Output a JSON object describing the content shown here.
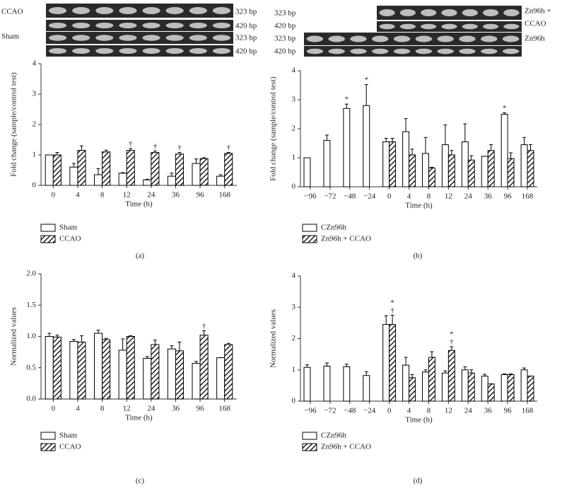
{
  "gels": {
    "a": [
      "CCAO",
      "323 bp",
      "420 bp",
      "Sham",
      "323 bp",
      "420 bp"
    ],
    "b": [
      "323 bp",
      "420 bp",
      "323 bp",
      "420 bp",
      "Zn96h +",
      "CCAO",
      "Zn96h"
    ]
  },
  "chart_data": [
    {
      "type": "bar",
      "panel_label": "(a)",
      "y_label": "Fold change (sample/control test)",
      "x_label": "Time (h)",
      "categories": [
        "0",
        "4",
        "8",
        "12",
        "24",
        "36",
        "96",
        "168"
      ],
      "ylim": [
        0,
        4
      ],
      "yticks": [
        0,
        1,
        2,
        3,
        4
      ],
      "series": [
        {
          "name": "Sham",
          "color": "#ffffff",
          "hatch": false,
          "values": [
            1.0,
            0.6,
            0.35,
            0.4,
            0.18,
            0.3,
            0.72,
            0.3
          ],
          "errors": [
            0,
            0.12,
            0.2,
            0.02,
            0.02,
            0.1,
            0.15,
            0.05
          ],
          "markers": [
            null,
            null,
            null,
            null,
            null,
            null,
            null,
            null
          ]
        },
        {
          "name": "CCAO",
          "color": "#000000",
          "hatch": true,
          "values": [
            1.0,
            1.15,
            1.1,
            1.15,
            1.08,
            1.03,
            0.88,
            1.05
          ],
          "errors": [
            0.08,
            0.15,
            0.06,
            0.06,
            0.05,
            0.05,
            0.03,
            0.03
          ],
          "markers": [
            null,
            null,
            null,
            [
              "†"
            ],
            [
              "†"
            ],
            [
              "†"
            ],
            null,
            [
              "†"
            ]
          ]
        }
      ]
    },
    {
      "type": "bar",
      "panel_label": "(b)",
      "y_label": "Fold change (sample/control test)",
      "x_label": "Time (h)",
      "categories": [
        "−96",
        "−72",
        "−48",
        "−24",
        "0",
        "4",
        "8",
        "12",
        "24",
        "36",
        "96",
        "168"
      ],
      "ylim": [
        0,
        4
      ],
      "yticks": [
        0,
        1,
        2,
        3,
        4
      ],
      "series": [
        {
          "name": "CZn96h",
          "color": "#ffffff",
          "hatch": false,
          "values": [
            1.0,
            1.6,
            2.7,
            2.8,
            1.55,
            1.9,
            1.15,
            1.45,
            1.55,
            1.05,
            2.5,
            1.45
          ],
          "errors": [
            0,
            0.18,
            0.15,
            0.72,
            0.12,
            0.45,
            0.55,
            0.68,
            0.62,
            0,
            0.05,
            0.25
          ],
          "markers": [
            null,
            null,
            [
              "*"
            ],
            [
              "*"
            ],
            null,
            null,
            null,
            null,
            null,
            null,
            [
              "*"
            ],
            null
          ]
        },
        {
          "name": "Zn96h + CCAO",
          "color": "#000000",
          "hatch": true,
          "values": [
            null,
            null,
            null,
            null,
            1.55,
            1.1,
            0.65,
            1.1,
            0.92,
            1.25,
            0.97,
            1.25
          ],
          "errors": [
            null,
            null,
            null,
            null,
            0.12,
            0.2,
            0.02,
            0.15,
            0.15,
            0.2,
            0.2,
            0.2
          ],
          "markers": [
            null,
            null,
            null,
            null,
            null,
            null,
            null,
            null,
            null,
            null,
            null,
            null
          ]
        }
      ]
    },
    {
      "type": "bar",
      "panel_label": "(c)",
      "y_label": "Normalized values",
      "x_label": "Time (h)",
      "categories": [
        "0",
        "4",
        "8",
        "12",
        "24",
        "36",
        "96",
        "168"
      ],
      "ylim": [
        0,
        2
      ],
      "yticks": [
        {
          "value": 0,
          "label": "0.0"
        },
        0.5,
        {
          "value": 1,
          "label": "1.0"
        },
        1.5,
        {
          "value": 2,
          "label": "2.0"
        }
      ],
      "series": [
        {
          "name": "Sham",
          "color": "#ffffff",
          "hatch": false,
          "values": [
            1.0,
            0.92,
            1.05,
            0.78,
            0.65,
            0.8,
            0.57,
            0.66
          ],
          "errors": [
            0.05,
            0.03,
            0.05,
            0.18,
            0.03,
            0.05,
            0.03,
            0
          ],
          "markers": [
            null,
            null,
            null,
            null,
            null,
            null,
            null,
            null
          ]
        },
        {
          "name": "CCAO",
          "color": "#000000",
          "hatch": true,
          "values": [
            0.99,
            0.91,
            0.95,
            1.0,
            0.87,
            0.77,
            1.02,
            0.87
          ],
          "errors": [
            0.03,
            0.1,
            0.02,
            0.01,
            0.07,
            0.14,
            0.07,
            0.02
          ],
          "markers": [
            null,
            null,
            null,
            null,
            null,
            null,
            [
              "†"
            ],
            null
          ]
        }
      ]
    },
    {
      "type": "bar",
      "panel_label": "(d)",
      "y_label": "Normalized values",
      "x_label": "Time (h)",
      "categories": [
        "−96",
        "−72",
        "−48",
        "−24",
        "0",
        "4",
        "8",
        "12",
        "24",
        "36",
        "96",
        "168"
      ],
      "ylim": [
        0,
        4
      ],
      "yticks": [
        0,
        1,
        2,
        3,
        4
      ],
      "series": [
        {
          "name": "CZn96h",
          "color": "#ffffff",
          "hatch": false,
          "values": [
            1.08,
            1.12,
            1.1,
            0.82,
            2.45,
            1.15,
            0.93,
            0.9,
            1.0,
            0.8,
            0.85,
            1.0
          ],
          "errors": [
            0.08,
            0.1,
            0.08,
            0.12,
            0.28,
            0.25,
            0.07,
            0.07,
            0.1,
            0.06,
            0.02,
            0.06
          ],
          "markers": [
            null,
            null,
            null,
            null,
            null,
            null,
            null,
            null,
            null,
            null,
            null,
            null
          ]
        },
        {
          "name": "Zn96h + CCAO",
          "color": "#000000",
          "hatch": true,
          "values": [
            null,
            null,
            null,
            null,
            2.45,
            0.75,
            1.4,
            1.62,
            0.9,
            0.55,
            0.85,
            0.8
          ],
          "errors": [
            null,
            null,
            null,
            null,
            0.3,
            0.1,
            0.18,
            0.12,
            0.1,
            0,
            0.02,
            0
          ],
          "markers": [
            null,
            null,
            null,
            null,
            [
              "*",
              "†"
            ],
            null,
            null,
            [
              "*",
              "†"
            ],
            null,
            null,
            null,
            null
          ]
        }
      ]
    }
  ]
}
